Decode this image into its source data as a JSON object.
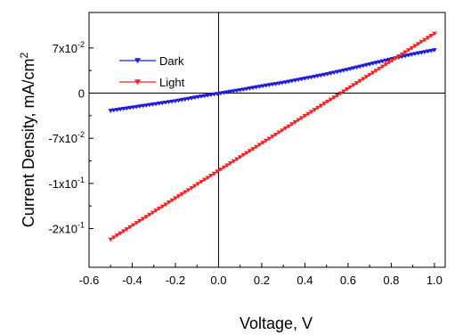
{
  "chart_data": {
    "type": "line",
    "xlabel": "Voltage, V",
    "ylabel_main": "Current Density, mA/cm",
    "ylabel_sup": "2",
    "xlim": [
      -0.6,
      1.05
    ],
    "ylim": [
      -0.27,
      0.125
    ],
    "x_ticks": [
      {
        "value": -0.6,
        "label": "-0.6"
      },
      {
        "value": -0.4,
        "label": "-0.4"
      },
      {
        "value": -0.2,
        "label": "-0.2"
      },
      {
        "value": 0.0,
        "label": "0.0"
      },
      {
        "value": 0.2,
        "label": "0.2"
      },
      {
        "value": 0.4,
        "label": "0.4"
      },
      {
        "value": 0.6,
        "label": "0.6"
      },
      {
        "value": 0.8,
        "label": "0.8"
      },
      {
        "value": 1.0,
        "label": "1.0"
      }
    ],
    "y_ticks": [
      {
        "value": 0.07,
        "base": "7x10",
        "exp": "-2"
      },
      {
        "value": 0.0,
        "base": "0",
        "exp": ""
      },
      {
        "value": -0.07,
        "base": "-7x10",
        "exp": "-2"
      },
      {
        "value": -0.14,
        "base": "-1x10",
        "exp": "-1"
      },
      {
        "value": -0.21,
        "base": "-2x10",
        "exp": "-1"
      }
    ],
    "zero_lines": true,
    "legend_position": "top-left",
    "series": [
      {
        "name": "Dark",
        "color": "#1f1fd6",
        "marker": "down-triangle",
        "x_range": [
          -0.5,
          1.0
        ],
        "x": [
          -0.5,
          -0.4,
          -0.3,
          -0.2,
          -0.1,
          0.0,
          0.1,
          0.2,
          0.3,
          0.4,
          0.5,
          0.6,
          0.7,
          0.8,
          0.9,
          1.0
        ],
        "y": [
          -0.0275,
          -0.0225,
          -0.0175,
          -0.0125,
          -0.0065,
          -0.001,
          0.0045,
          0.0105,
          0.016,
          0.0225,
          0.029,
          0.0365,
          0.0445,
          0.0525,
          0.06,
          0.0665
        ]
      },
      {
        "name": "Light",
        "color": "#ff2020",
        "marker": "down-triangle",
        "x_range": [
          -0.5,
          1.0
        ],
        "x": [
          -0.5,
          1.0
        ],
        "y": [
          -0.227,
          0.092
        ]
      }
    ]
  }
}
